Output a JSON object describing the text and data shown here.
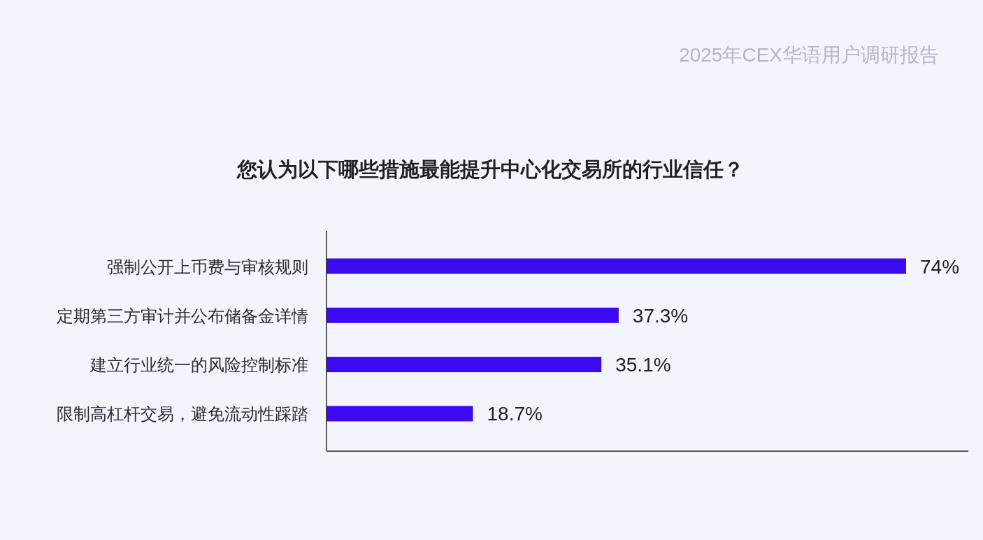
{
  "chart_data": {
    "type": "bar",
    "orientation": "horizontal",
    "title": "您认为以下哪些措施最能提升中心化交易所的行业信任？",
    "annotations": [
      "2025年CEX华语用户调研报告"
    ],
    "categories": [
      "强制公开上币费与审核规则",
      "定期第三方审计并公布储备金详情",
      "建立行业统一的风险控制标准",
      "限制高杠杆交易，避免流动性踩踏"
    ],
    "values": [
      74,
      37.3,
      35.1,
      18.7
    ],
    "value_labels": [
      "74%",
      "37.3%",
      "35.1%",
      "18.7%"
    ],
    "color": "#3b0af2"
  }
}
